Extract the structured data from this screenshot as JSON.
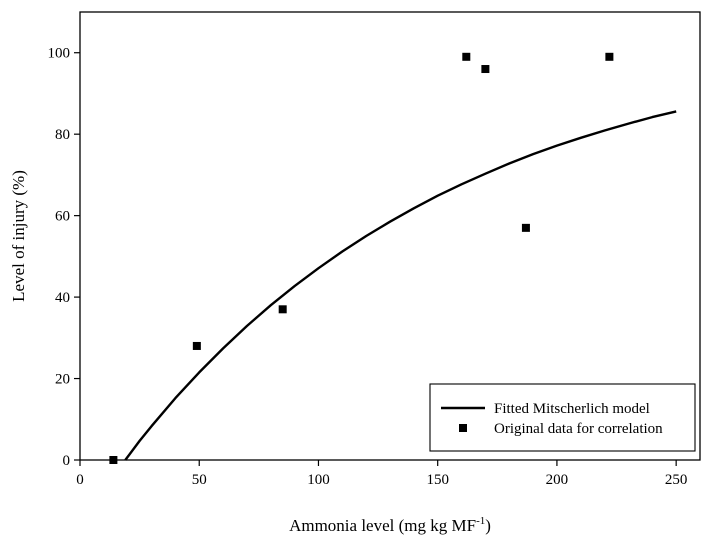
{
  "chart_data": {
    "type": "scatter",
    "xlabel": {
      "main": "Ammonia level (mg kg MF",
      "sup": "-1",
      "close": ")"
    },
    "ylabel": "Level of injury (%)",
    "xlim": [
      0,
      260
    ],
    "ylim": [
      0,
      110
    ],
    "xticks": [
      0,
      50,
      100,
      150,
      200,
      250
    ],
    "yticks": [
      0,
      20,
      40,
      60,
      80,
      100
    ],
    "grid": false,
    "legend_position": "bottom-right",
    "series": [
      {
        "name": "Original data for correlation",
        "kind": "points",
        "marker": "square",
        "color": "#000000",
        "x": [
          14,
          49,
          85,
          162,
          170,
          187,
          222
        ],
        "y": [
          0,
          28,
          37,
          99,
          96,
          57,
          99
        ]
      },
      {
        "name": "Fitted Mitscherlich model",
        "kind": "line",
        "color": "#000000",
        "x": [
          19,
          25,
          30,
          40,
          50,
          60,
          70,
          80,
          90,
          100,
          110,
          120,
          130,
          140,
          150,
          160,
          170,
          180,
          190,
          200,
          210,
          220,
          230,
          240,
          250
        ],
        "y": [
          0,
          4.7,
          8.3,
          15.2,
          21.5,
          27.4,
          32.9,
          38.0,
          42.7,
          47.1,
          51.2,
          55.0,
          58.5,
          61.8,
          64.9,
          67.7,
          70.3,
          72.8,
          75.1,
          77.2,
          79.1,
          80.9,
          82.6,
          84.2,
          85.6
        ]
      }
    ]
  }
}
